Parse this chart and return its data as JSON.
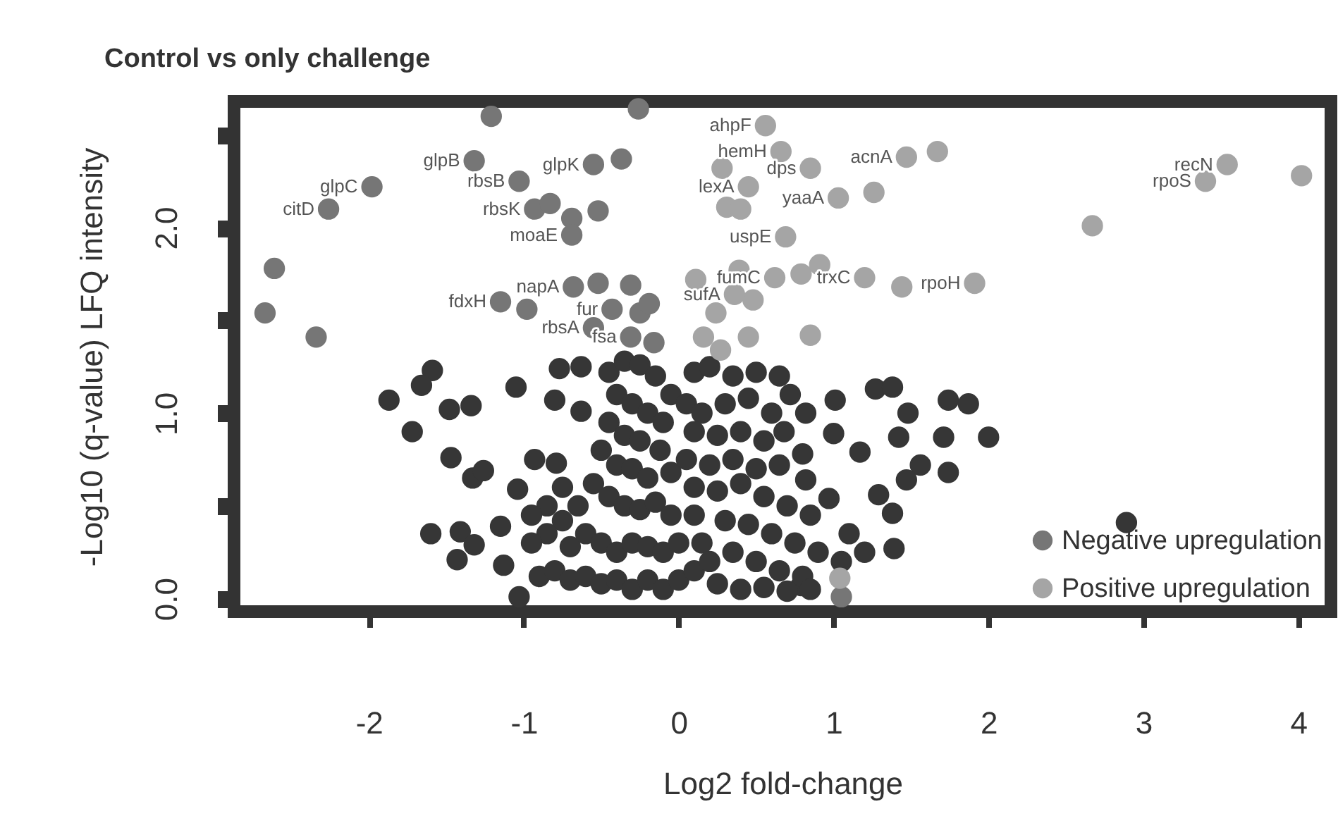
{
  "chart_data": {
    "type": "scatter",
    "title": "Control vs only challenge",
    "xlabel": "Log2 fold-change",
    "ylabel": "-Log10 (q-value) LFQ intensity",
    "xlim": [
      -2.87,
      4.21
    ],
    "ylim": [
      -0.07,
      2.68
    ],
    "xticks": [
      -2,
      -1,
      0,
      1,
      2,
      3,
      4
    ],
    "yticks": [
      {
        "value": 0,
        "label": "0.0"
      },
      {
        "value": 0.5,
        "label": null
      },
      {
        "value": 1,
        "label": "1.0"
      },
      {
        "value": 1.5,
        "label": null
      },
      {
        "value": 2,
        "label": "2.0"
      },
      {
        "value": 2.5,
        "label": null
      }
    ],
    "grid": false,
    "legend": "bottom right",
    "marker": "circle",
    "series": [
      {
        "color": "#363636",
        "x": [
          -1.59,
          -1.66,
          -1.87,
          -1.48,
          -1.34,
          -1.72,
          -1.47,
          -1.33,
          -1.26,
          -1.05,
          -0.77,
          -0.63,
          -0.8,
          -0.63,
          -0.93,
          -0.79,
          -1.6,
          -1.41,
          -1.32,
          -1.43,
          -1.15,
          -1.13,
          -1.03,
          -1.04,
          1.01,
          1.27,
          1.38,
          1.48,
          1.74,
          1.87,
          2.0,
          1.71,
          1.42,
          1.74,
          1.56,
          1.47,
          1.0,
          1.17,
          0.82,
          0.82,
          1.29,
          1.38,
          1.39,
          2.89,
          0.97,
          0.79,
          -0.45,
          -0.35,
          -0.25,
          -0.15,
          -0.05,
          -0.4,
          -0.3,
          -0.2,
          -0.1,
          -0.45,
          -0.35,
          -0.25,
          -0.12,
          -0.5,
          -0.4,
          -0.3,
          -0.2,
          -0.05,
          -0.55,
          -0.45,
          -0.35,
          -0.25,
          -0.15,
          -0.05,
          -0.65,
          -0.75,
          -0.85,
          -0.95,
          -0.7,
          -0.6,
          -0.5,
          -0.4,
          -0.3,
          -0.2,
          -0.1,
          0.0,
          -0.9,
          -0.8,
          -0.7,
          -0.6,
          -0.5,
          -0.4,
          -0.3,
          -0.2,
          -0.1,
          0.0,
          -0.85,
          -0.95,
          -0.75,
          0.1,
          0.2,
          0.35,
          0.5,
          0.65,
          0.72,
          0.05,
          0.15,
          0.3,
          0.45,
          0.6,
          0.1,
          0.25,
          0.4,
          0.55,
          0.68,
          0.05,
          0.2,
          0.35,
          0.5,
          0.65,
          0.8,
          0.1,
          0.25,
          0.4,
          0.55,
          0.7,
          0.85,
          0.1,
          0.3,
          0.45,
          0.6,
          0.75,
          0.9,
          0.15,
          0.35,
          0.5,
          0.65,
          0.8,
          0.1,
          0.25,
          0.4,
          0.55,
          0.7,
          0.2,
          0.85,
          1.1,
          1.2,
          1.05
        ],
        "values": [
          1.23,
          1.15,
          1.07,
          1.02,
          1.04,
          0.9,
          0.76,
          0.65,
          0.69,
          1.14,
          1.24,
          1.25,
          1.07,
          1.01,
          0.75,
          0.73,
          0.35,
          0.36,
          0.29,
          0.21,
          0.39,
          0.18,
          0.01,
          0.59,
          1.07,
          1.13,
          1.14,
          1.0,
          1.07,
          1.05,
          0.87,
          0.87,
          0.87,
          0.68,
          0.72,
          0.64,
          0.89,
          0.79,
          1.0,
          0.64,
          0.56,
          0.46,
          0.27,
          0.41,
          0.54,
          0.07,
          1.22,
          1.28,
          1.26,
          1.2,
          1.1,
          1.1,
          1.05,
          1.0,
          0.95,
          0.95,
          0.88,
          0.85,
          0.8,
          0.8,
          0.72,
          0.7,
          0.65,
          0.68,
          0.62,
          0.55,
          0.5,
          0.48,
          0.52,
          0.45,
          0.5,
          0.42,
          0.35,
          0.3,
          0.28,
          0.35,
          0.3,
          0.25,
          0.3,
          0.28,
          0.25,
          0.3,
          0.12,
          0.15,
          0.1,
          0.12,
          0.08,
          0.1,
          0.05,
          0.1,
          0.05,
          0.1,
          0.5,
          0.45,
          0.6,
          1.22,
          1.25,
          1.2,
          1.22,
          1.2,
          1.1,
          1.05,
          1.0,
          1.05,
          1.08,
          1.0,
          0.9,
          0.88,
          0.9,
          0.85,
          0.9,
          0.75,
          0.72,
          0.75,
          0.7,
          0.72,
          0.78,
          0.6,
          0.58,
          0.62,
          0.55,
          0.5,
          0.45,
          0.45,
          0.42,
          0.4,
          0.35,
          0.3,
          0.25,
          0.3,
          0.25,
          0.2,
          0.15,
          0.12,
          0.15,
          0.08,
          0.05,
          0.06,
          0.04,
          0.2,
          0.05,
          0.35,
          0.25,
          0.2
        ]
      },
      {
        "name": "Negative upregulation",
        "color": "#767676",
        "x": [
          -1.21,
          -0.26,
          -1.32,
          -1.98,
          -2.26,
          -1.03,
          -0.55,
          -0.37,
          -0.93,
          -0.83,
          -0.69,
          -0.52,
          -0.69,
          -2.61,
          -2.67,
          -2.34,
          -0.68,
          -0.52,
          -0.31,
          -1.15,
          -0.98,
          -0.55,
          -0.43,
          -0.25,
          -0.16,
          -0.31,
          -0.19,
          1.05
        ],
        "values": [
          2.6,
          2.64,
          2.36,
          2.22,
          2.1,
          2.25,
          2.34,
          2.37,
          2.1,
          2.13,
          2.05,
          2.09,
          1.96,
          1.78,
          1.54,
          1.41,
          1.68,
          1.7,
          1.69,
          1.6,
          1.56,
          1.46,
          1.56,
          1.54,
          1.38,
          1.41,
          1.59,
          0.01
        ]
      },
      {
        "name": "Positive upregulation",
        "color": "#a5a5a5",
        "x": [
          0.56,
          0.28,
          0.66,
          0.85,
          0.45,
          0.31,
          0.4,
          1.47,
          1.67,
          1.26,
          1.03,
          3.54,
          3.4,
          4.02,
          2.67,
          0.69,
          0.11,
          0.39,
          0.62,
          0.79,
          0.91,
          1.2,
          1.44,
          1.91,
          0.24,
          0.48,
          0.16,
          0.45,
          0.85,
          0.27,
          0.36,
          1.04
        ],
        "values": [
          2.55,
          2.32,
          2.41,
          2.32,
          2.22,
          2.11,
          2.1,
          2.38,
          2.41,
          2.19,
          2.16,
          2.34,
          2.25,
          2.28,
          2.01,
          1.95,
          1.72,
          1.77,
          1.73,
          1.75,
          1.8,
          1.73,
          1.68,
          1.7,
          1.54,
          1.61,
          1.41,
          1.41,
          1.42,
          1.34,
          1.64,
          0.11
        ]
      }
    ],
    "annotations": [
      {
        "text": "glpB",
        "x": -1.32,
        "y": 2.36
      },
      {
        "text": "glpC",
        "x": -1.98,
        "y": 2.22
      },
      {
        "text": "citD",
        "x": -2.26,
        "y": 2.1
      },
      {
        "text": "rbsB",
        "x": -1.03,
        "y": 2.25
      },
      {
        "text": "rbsK",
        "x": -0.93,
        "y": 2.1
      },
      {
        "text": "moaE",
        "x": -0.69,
        "y": 1.96
      },
      {
        "text": "glpK",
        "x": -0.55,
        "y": 2.34
      },
      {
        "text": "napA",
        "x": -0.68,
        "y": 1.68
      },
      {
        "text": "fdxH",
        "x": -1.15,
        "y": 1.6
      },
      {
        "text": "rbsA",
        "x": -0.55,
        "y": 1.46
      },
      {
        "text": "fur",
        "x": -0.43,
        "y": 1.56
      },
      {
        "text": "fsa",
        "x": -0.31,
        "y": 1.41
      },
      {
        "text": "ahpF",
        "x": 0.56,
        "y": 2.55
      },
      {
        "text": "hemH",
        "x": 0.66,
        "y": 2.41
      },
      {
        "text": "dps",
        "x": 0.85,
        "y": 2.32
      },
      {
        "text": "lexA",
        "x": 0.45,
        "y": 2.22
      },
      {
        "text": "uspE",
        "x": 0.69,
        "y": 1.95
      },
      {
        "text": "fumC",
        "x": 0.62,
        "y": 1.73
      },
      {
        "text": "sufA",
        "x": 0.36,
        "y": 1.64
      },
      {
        "text": "acnA",
        "x": 1.47,
        "y": 2.38
      },
      {
        "text": "yaaA",
        "x": 1.03,
        "y": 2.16
      },
      {
        "text": "trxC",
        "x": 1.2,
        "y": 1.73
      },
      {
        "text": "rpoH",
        "x": 1.91,
        "y": 1.7
      },
      {
        "text": "recN",
        "x": 3.54,
        "y": 2.34
      },
      {
        "text": "rpoS",
        "x": 3.4,
        "y": 2.25
      }
    ]
  }
}
